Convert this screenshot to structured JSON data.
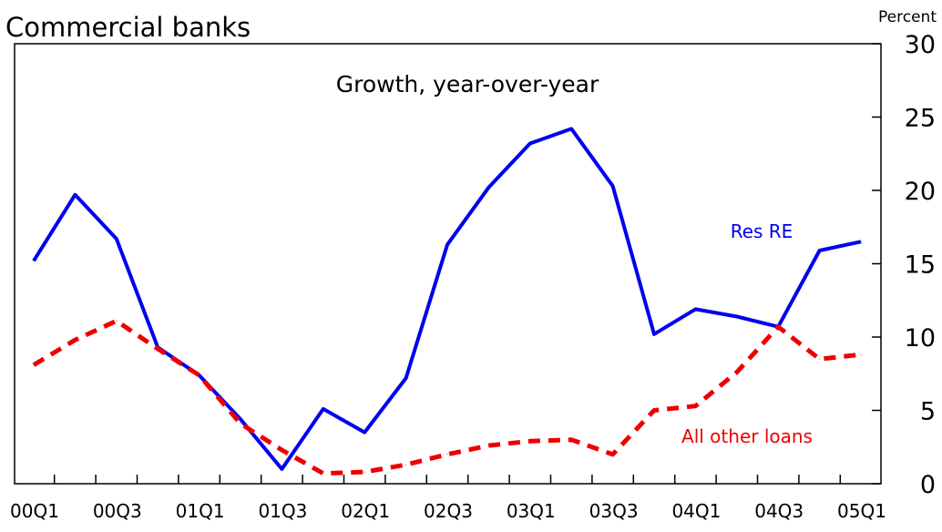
{
  "chart_data": {
    "type": "line",
    "subtitle": "Commercial banks",
    "inner_title": "Growth, year-over-year",
    "y_unit_label": "Percent",
    "y_axis_side": "right",
    "ylim": [
      0,
      30
    ],
    "y_ticks": [
      0,
      5,
      10,
      15,
      20,
      25,
      30
    ],
    "x": [
      "00Q1",
      "00Q2",
      "00Q3",
      "00Q4",
      "01Q1",
      "01Q2",
      "01Q3",
      "01Q4",
      "02Q1",
      "02Q2",
      "02Q3",
      "02Q4",
      "03Q1",
      "03Q2",
      "03Q3",
      "03Q4",
      "04Q1",
      "04Q2",
      "04Q3",
      "04Q4",
      "05Q1"
    ],
    "x_tick_labels": [
      "00Q1",
      "00Q3",
      "01Q1",
      "01Q3",
      "02Q1",
      "02Q3",
      "03Q1",
      "03Q3",
      "04Q1",
      "04Q3",
      "05Q1"
    ],
    "grid": false,
    "legend": "none",
    "series": [
      {
        "name": "Res RE",
        "color": "#0000ee",
        "style": "solid",
        "values": [
          15.2,
          19.7,
          16.7,
          9.3,
          7.4,
          4.4,
          1.0,
          5.1,
          3.5,
          7.2,
          16.3,
          20.2,
          23.2,
          24.2,
          20.3,
          10.2,
          11.9,
          11.4,
          10.7,
          15.9,
          16.5
        ]
      },
      {
        "name": "All other loans",
        "color": "#ee0000",
        "style": "dashed",
        "values": [
          8.1,
          9.8,
          11.1,
          9.2,
          7.4,
          4.1,
          2.3,
          0.7,
          0.8,
          1.3,
          2.0,
          2.6,
          2.9,
          3.0,
          2.0,
          5.0,
          5.3,
          7.6,
          10.7,
          8.5,
          8.8
        ]
      }
    ],
    "annotations": [
      {
        "text": "Res RE",
        "series": "Res RE",
        "color": "#0000ee"
      },
      {
        "text": "All other loans",
        "series": "All other loans",
        "color": "#ee0000"
      }
    ]
  }
}
